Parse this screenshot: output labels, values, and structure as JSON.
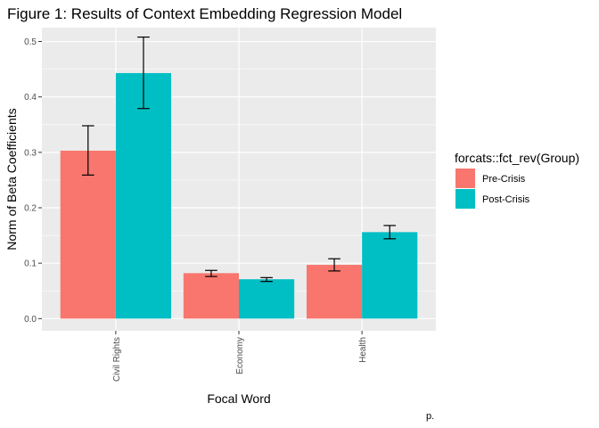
{
  "chart_data": {
    "type": "bar",
    "title": "Figure 1: Results of Context Embedding Regression Model",
    "xlabel": "Focal Word",
    "ylabel": "Norm of Beta Coefficients",
    "categories": [
      "Civil Rights",
      "Economy",
      "Health"
    ],
    "ylim": [
      -0.022,
      0.525
    ],
    "yticks": [
      0.0,
      0.1,
      0.2,
      0.3,
      0.4,
      0.5
    ],
    "ytick_labels": [
      "0.0",
      "0.1",
      "0.2",
      "0.3",
      "0.4",
      "0.5"
    ],
    "grid": true,
    "legend": {
      "title": "forcats::fct_rev(Group)",
      "position": "right"
    },
    "series": [
      {
        "name": "Pre-Crisis",
        "color": "#F8766D",
        "values": [
          0.303,
          0.082,
          0.097
        ],
        "lower": [
          0.259,
          0.076,
          0.086
        ],
        "upper": [
          0.348,
          0.087,
          0.108
        ]
      },
      {
        "name": "Post-Crisis",
        "color": "#00BFC4",
        "values": [
          0.443,
          0.071,
          0.156
        ],
        "lower": [
          0.379,
          0.067,
          0.144
        ],
        "upper": [
          0.508,
          0.074,
          0.168
        ]
      }
    ],
    "footnote": "p."
  }
}
